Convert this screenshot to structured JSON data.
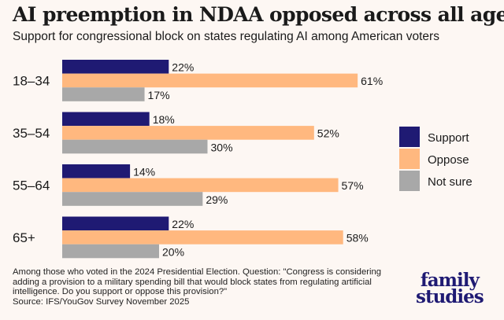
{
  "title": "AI preemption in NDAA opposed across all ages",
  "subtitle": "Support for congressional block on states regulating AI among American voters",
  "chart_data": {
    "type": "bar",
    "orientation": "horizontal",
    "categories": [
      "18–34",
      "35–54",
      "55–64",
      "65+"
    ],
    "series": [
      {
        "name": "Support",
        "color": "#1f1a73",
        "values": [
          22,
          18,
          14,
          22
        ]
      },
      {
        "name": "Oppose",
        "color": "#ffb87f",
        "values": [
          61,
          52,
          57,
          58
        ]
      },
      {
        "name": "Not sure",
        "color": "#a8a8a8",
        "values": [
          17,
          30,
          29,
          20
        ]
      }
    ],
    "value_suffix": "%",
    "legend_position": "right",
    "grid": false
  },
  "note": "Among those who voted in the 2024 Presidential Election. Question: \"Congress is considering adding a provision to a military spending bill that would block states from regulating artificial intelligence. Do you support or oppose this provision?\"",
  "source": "Source: IFS/YouGov Survey November 2025",
  "logo": {
    "line1": "family",
    "line2": "studies"
  }
}
